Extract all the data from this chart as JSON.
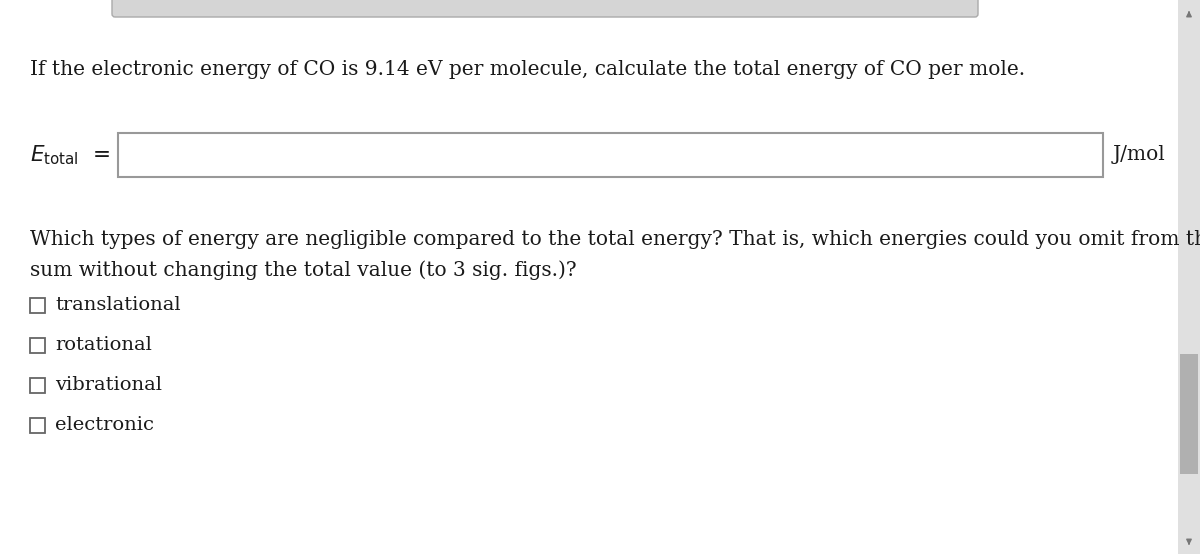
{
  "bg_color": "#e8e8e8",
  "content_bg": "#ffffff",
  "title_text": "If the electronic energy of CO is 9.14 eV per molecule, calculate the total energy of CO per mole.",
  "jmol_label": "J/mol",
  "question_line1": "Which types of energy are negligible compared to the total energy? That is, which energies could you omit from the",
  "question_line2": "sum without changing the total value (to 3 sig. figs.)?",
  "checkboxes": [
    "translational",
    "rotational",
    "vibrational",
    "electronic"
  ],
  "scrollbar_bg": "#e0e0e0",
  "scrollbar_thumb": "#b0b0b0",
  "text_color": "#1a1a1a",
  "font_size_main": 14.5,
  "font_size_items": 14,
  "input_box_border": "#999999",
  "top_tab_color": "#c0c0c0"
}
